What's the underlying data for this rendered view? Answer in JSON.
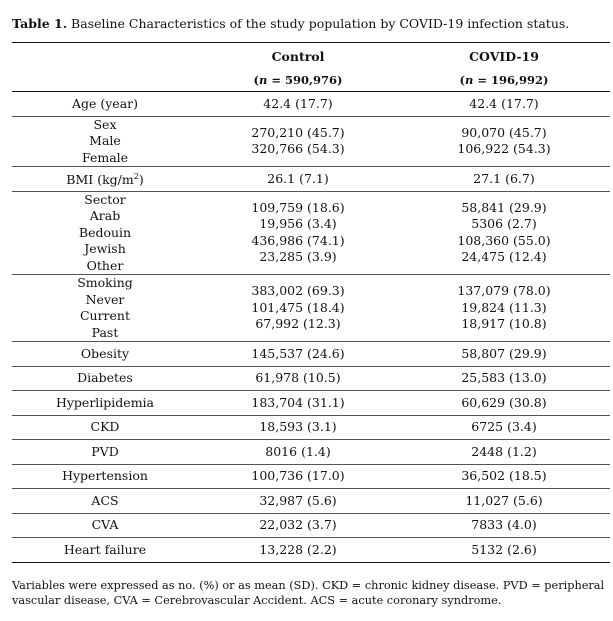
{
  "caption": {
    "label": "Table 1.",
    "text": " Baseline Characteristics of the study population by COVID-19 infection status."
  },
  "headers": {
    "col1": "Control",
    "col2": "COVID-19",
    "n1": "(n = 590,976)",
    "n2": "(n = 196,992)"
  },
  "rows": [
    {
      "label": [
        "Age (year)"
      ],
      "control": [
        "42.4 (17.7)"
      ],
      "covid": [
        "42.4 (17.7)"
      ]
    },
    {
      "label": [
        "Sex",
        "Male",
        "Female"
      ],
      "control": [
        "",
        "270,210 (45.7)",
        "320,766 (54.3)"
      ],
      "covid": [
        "",
        "90,070 (45.7)",
        "106,922 (54.3)"
      ]
    },
    {
      "label": [
        "BMI (kg/m2)"
      ],
      "control": [
        "26.1 (7.1)"
      ],
      "covid": [
        "27.1 (6.7)"
      ]
    },
    {
      "label": [
        "Sector",
        "Arab",
        "Bedouin",
        "Jewish",
        "Other"
      ],
      "control": [
        "",
        "109,759 (18.6)",
        "19,956 (3.4)",
        "436,986 (74.1)",
        "23,285 (3.9)"
      ],
      "covid": [
        "",
        "58,841 (29.9)",
        "5306 (2.7)",
        "108,360 (55.0)",
        "24,475 (12.4)"
      ]
    },
    {
      "label": [
        "Smoking",
        "Never",
        "Current",
        "Past"
      ],
      "control": [
        "",
        "383,002 (69.3)",
        "101,475 (18.4)",
        "67,992 (12.3)"
      ],
      "covid": [
        "",
        "137,079 (78.0)",
        "19,824 (11.3)",
        "18,917 (10.8)"
      ]
    },
    {
      "label": [
        "Obesity"
      ],
      "control": [
        "145,537 (24.6)"
      ],
      "covid": [
        "58,807 (29.9)"
      ]
    },
    {
      "label": [
        "Diabetes"
      ],
      "control": [
        "61,978 (10.5)"
      ],
      "covid": [
        "25,583 (13.0)"
      ]
    },
    {
      "label": [
        "Hyperlipidemia"
      ],
      "control": [
        "183,704 (31.1)"
      ],
      "covid": [
        "60,629 (30.8)"
      ]
    },
    {
      "label": [
        "CKD"
      ],
      "control": [
        "18,593 (3.1)"
      ],
      "covid": [
        "6725 (3.4)"
      ]
    },
    {
      "label": [
        "PVD"
      ],
      "control": [
        "8016 (1.4)"
      ],
      "covid": [
        "2448 (1.2)"
      ]
    },
    {
      "label": [
        "Hypertension"
      ],
      "control": [
        "100,736 (17.0)"
      ],
      "covid": [
        "36,502 (18.5)"
      ]
    },
    {
      "label": [
        "ACS"
      ],
      "control": [
        "32,987 (5.6)"
      ],
      "covid": [
        "11,027 (5.6)"
      ]
    },
    {
      "label": [
        "CVA"
      ],
      "control": [
        "22,032 (3.7)"
      ],
      "covid": [
        "7833 (4.0)"
      ]
    },
    {
      "label": [
        "Heart failure"
      ],
      "control": [
        "13,228 (2.2)"
      ],
      "covid": [
        "5132 (2.6)"
      ]
    }
  ],
  "footnote": "Variables were expressed as no. (%) or as mean (SD). CKD = chronic kidney disease. PVD = peripheral vascular disease, CVA = Cerebrovascular Accident. ACS = acute coronary syndrome."
}
